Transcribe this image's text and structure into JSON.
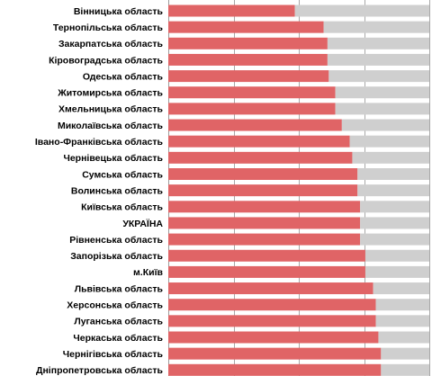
{
  "chart_data": {
    "type": "bar",
    "orientation": "horizontal",
    "stacked": true,
    "categories": [
      "Вінницька область",
      "Тернопільська область",
      "Закарпатська область",
      "Кіровоградська область",
      "Одеська область",
      "Житомирська область",
      "Хмельницька область",
      "Миколаївська область",
      "Івано-Франківська область",
      "Чернівецька область",
      "Сумська область",
      "Волинська область",
      "Київська область",
      "УКРАЇНА",
      "Рівненська область",
      "Запорізька область",
      "м.Київ",
      "Львівська область",
      "Херсонська область",
      "Луганська область",
      "Черкаська область",
      "Чернігівська область",
      "Дніпропетровська область"
    ],
    "series": [
      {
        "color": "#e06466",
        "values": [
          48.5,
          59.5,
          61.0,
          61.0,
          61.5,
          64.0,
          64.0,
          66.5,
          69.5,
          70.5,
          72.5,
          72.5,
          73.5,
          73.5,
          73.5,
          75.5,
          75.5,
          78.5,
          79.5,
          79.5,
          80.5,
          81.5,
          81.5
        ]
      },
      {
        "color": "#cfcfcf",
        "values": [
          51.5,
          40.5,
          39.0,
          39.0,
          38.5,
          36.0,
          36.0,
          33.5,
          30.5,
          29.5,
          27.5,
          27.5,
          26.5,
          26.5,
          26.5,
          24.5,
          24.5,
          21.5,
          20.5,
          20.5,
          19.5,
          18.5,
          18.5
        ]
      }
    ],
    "xlim": [
      0,
      100
    ],
    "grid": true,
    "legend": "none"
  }
}
